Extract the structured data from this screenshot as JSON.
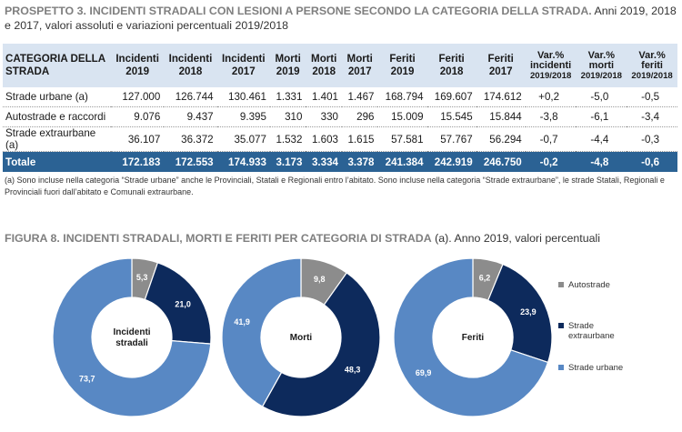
{
  "table_title": {
    "bold": "PROSPETTO 3. INCIDENTI STRADALI CON LESIONI A PERSONE SECONDO LA CATEGORIA DELLA STRADA.",
    "rest": " Anni 2019, 2018 e 2017, valori assoluti e variazioni percentuali 2019/2018"
  },
  "table": {
    "headers": {
      "category": [
        "CATEGORIA DELLA",
        "STRADA"
      ],
      "inc2019": [
        "Incidenti",
        "2019"
      ],
      "inc2018": [
        "Incidenti",
        "2018"
      ],
      "inc2017": [
        "Incidenti",
        "2017"
      ],
      "mor2019": [
        "Morti",
        "2019"
      ],
      "mor2018": [
        "Morti",
        "2018"
      ],
      "mor2017": [
        "Morti",
        "2017"
      ],
      "fer2019": [
        "Feriti",
        "2019"
      ],
      "fer2018": [
        "Feriti",
        "2018"
      ],
      "fer2017": [
        "Feriti",
        "2017"
      ],
      "var_inc": [
        "Var.%",
        "incidenti",
        "2019/2018"
      ],
      "var_mor": [
        "Var.%",
        "morti",
        "2019/2018"
      ],
      "var_fer": [
        "Var.%",
        "feriti",
        "2019/2018"
      ]
    },
    "rows": [
      [
        "Strade urbane (a)",
        "127.000",
        "126.744",
        "130.461",
        "1.331",
        "1.401",
        "1.467",
        "168.794",
        "169.607",
        "174.612",
        "+0,2",
        "-5,0",
        "-0,5"
      ],
      [
        "Autostrade e raccordi",
        "9.076",
        "9.437",
        "9.395",
        "310",
        "330",
        "296",
        "15.009",
        "15.545",
        "15.844",
        "-3,8",
        "-6,1",
        "-3,4"
      ],
      [
        "Strade extraurbane (a)",
        "36.107",
        "36.372",
        "35.077",
        "1.532",
        "1.603",
        "1.615",
        "57.581",
        "57.767",
        "56.294",
        "-0,7",
        "-4,4",
        "-0,3"
      ]
    ],
    "total": [
      "Totale",
      "172.183",
      "172.553",
      "174.933",
      "3.173",
      "3.334",
      "3.378",
      "241.384",
      "242.919",
      "246.750",
      "-0,2",
      "-4,8",
      "-0,6"
    ]
  },
  "note": "(a)  Sono incluse nella categoria “Strade urbane” anche le Provinciali, Statali e Regionali entro l’abitato. Sono incluse nella categoria “Strade extraurbane”, le strade Statali, Regionali e Provinciali fuori dall’abitato e Comunali extraurbane.",
  "figure_title": {
    "bold": "FIGURA 8. INCIDENTI STRADALI, MORTI E FERITI PER CATEGORIA DI STRADA",
    "rest": " (a). Anno 2019, valori percentuali"
  },
  "colors": {
    "autostrade": "#8c8c8c",
    "extraurbane": "#0d2a5c",
    "urbane": "#5888c4",
    "header_bg": "#d9e4f1",
    "total_bg": "#2b6294"
  },
  "chart_data": [
    {
      "type": "pie",
      "title": "Incidenti stradali",
      "categories": [
        "Autostrade",
        "Strade extraurbane",
        "Strade urbane"
      ],
      "values": [
        5.3,
        21.0,
        73.7
      ],
      "labels": [
        "5,3",
        "21,0",
        "73,7"
      ]
    },
    {
      "type": "pie",
      "title": "Morti",
      "categories": [
        "Autostrade",
        "Strade extraurbane",
        "Strade urbane"
      ],
      "values": [
        9.8,
        48.3,
        41.9
      ],
      "labels": [
        "9,8",
        "48,3",
        "41,9"
      ]
    },
    {
      "type": "pie",
      "title": "Feriti",
      "categories": [
        "Autostrade",
        "Strade extraurbane",
        "Strade urbane"
      ],
      "values": [
        6.2,
        23.9,
        69.9
      ],
      "labels": [
        "6,2",
        "23,9",
        "69,9"
      ]
    }
  ],
  "legend": [
    {
      "label": "Autostrade",
      "color": "#8c8c8c"
    },
    {
      "label": "Strade extraurbane",
      "color": "#0d2a5c"
    },
    {
      "label": "Strade urbane",
      "color": "#5888c4"
    }
  ]
}
